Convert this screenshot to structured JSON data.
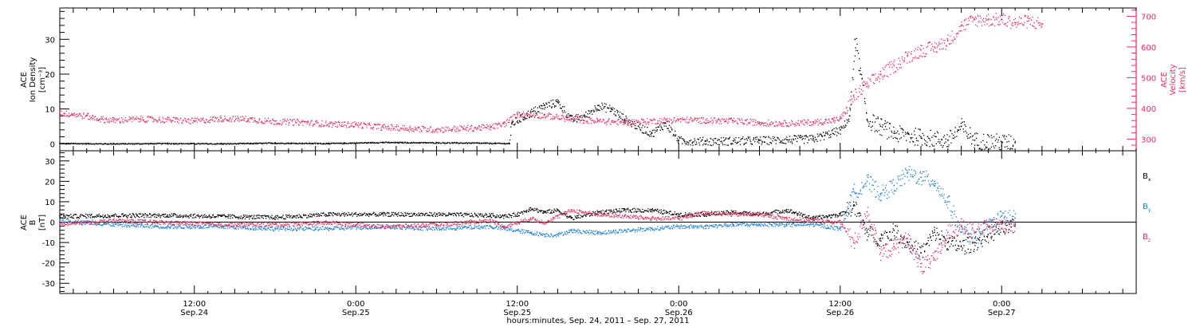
{
  "colors": {
    "black": "#000000",
    "blue": "#1e7fd6",
    "pink": "#e8305f"
  },
  "x_axis": {
    "title": "hours:minutes, Sep. 24, 2011 – Sep. 27, 2011",
    "ticks": [
      {
        "hour": 12,
        "time": "12:00",
        "date": "Sep.24"
      },
      {
        "hour": 24,
        "time": "0:00",
        "date": "Sep.25"
      },
      {
        "hour": 36,
        "time": "12:00",
        "date": "Sep.25"
      },
      {
        "hour": 48,
        "time": "0:00",
        "date": "Sep.26"
      },
      {
        "hour": 60,
        "time": "12:00",
        "date": "Sep.26"
      },
      {
        "hour": 72,
        "time": "0:00",
        "date": "Sep.27"
      }
    ]
  },
  "chart_data": [
    {
      "type": "scatter",
      "panel": "top",
      "x_unit": "hours since Sep. 24, 2011 0:00",
      "xlim": [
        2,
        82
      ],
      "left_axis": {
        "label_line1": "ACE",
        "label_line2": "Ion Density",
        "label_line3": "[cm⁻³]",
        "ylim": [
          -2,
          39
        ],
        "ticks": [
          0,
          10,
          20,
          30
        ],
        "tick_labels": [
          "0",
          "10",
          "20",
          "30"
        ]
      },
      "right_axis": {
        "label_line1": "ACE",
        "label_line2": "Velocity",
        "label_line3": "[km/s]",
        "ylim": [
          262,
          727
        ],
        "ticks": [
          300,
          400,
          500,
          600,
          700
        ],
        "tick_labels": [
          "300",
          "400",
          "500",
          "600",
          "700"
        ]
      },
      "series": [
        {
          "color": "#000000",
          "axis": "left",
          "points": [
            [
              2,
              0.2
            ],
            [
              6,
              0.1
            ],
            [
              10,
              0.2
            ],
            [
              14,
              0.1
            ],
            [
              18,
              0.3
            ],
            [
              22,
              0.2
            ],
            [
              26,
              0.5
            ],
            [
              30,
              0.4
            ],
            [
              33,
              0.3
            ],
            [
              35.4,
              0.2
            ],
            [
              35.6,
              6
            ],
            [
              37,
              9
            ],
            [
              38,
              11
            ],
            [
              39,
              12
            ],
            [
              40,
              7
            ],
            [
              41,
              8
            ],
            [
              42,
              11
            ],
            [
              43,
              10
            ],
            [
              44,
              7
            ],
            [
              45,
              5
            ],
            [
              46,
              3
            ],
            [
              47,
              6
            ],
            [
              48,
              1
            ],
            [
              50,
              0.8
            ],
            [
              54,
              1
            ],
            [
              58,
              1.5
            ],
            [
              60,
              4
            ],
            [
              60.7,
              8
            ],
            [
              61.1,
              30
            ],
            [
              61.5,
              20
            ],
            [
              62,
              7
            ],
            [
              63,
              5
            ],
            [
              64,
              3
            ],
            [
              66,
              2
            ],
            [
              68,
              1
            ],
            [
              69,
              5
            ],
            [
              70,
              1
            ],
            [
              72,
              0.5
            ],
            [
              73,
              0.3
            ]
          ]
        },
        {
          "color": "#e8305f",
          "axis": "right",
          "points": [
            [
              2,
              386
            ],
            [
              3,
              382
            ],
            [
              4,
              376
            ],
            [
              5,
              366
            ],
            [
              6,
              362
            ],
            [
              8,
              366
            ],
            [
              10,
              364
            ],
            [
              12,
              360
            ],
            [
              14,
              368
            ],
            [
              16,
              366
            ],
            [
              18,
              358
            ],
            [
              20,
              356
            ],
            [
              22,
              350
            ],
            [
              24,
              348
            ],
            [
              26,
              340
            ],
            [
              28,
              336
            ],
            [
              30,
              332
            ],
            [
              32,
              336
            ],
            [
              34,
              340
            ],
            [
              35,
              350
            ],
            [
              36,
              382
            ],
            [
              38,
              378
            ],
            [
              40,
              366
            ],
            [
              42,
              360
            ],
            [
              44,
              356
            ],
            [
              46,
              360
            ],
            [
              48,
              364
            ],
            [
              50,
              362
            ],
            [
              52,
              360
            ],
            [
              54,
              355
            ],
            [
              56,
              352
            ],
            [
              58,
              356
            ],
            [
              59.5,
              362
            ],
            [
              60,
              368
            ],
            [
              61,
              440
            ],
            [
              62,
              480
            ],
            [
              63,
              510
            ],
            [
              64,
              540
            ],
            [
              65,
              570
            ],
            [
              66,
              590
            ],
            [
              67,
              600
            ],
            [
              68,
              620
            ],
            [
              69,
              670
            ],
            [
              70,
              690
            ],
            [
              71,
              690
            ],
            [
              72,
              690
            ],
            [
              73,
              680
            ],
            [
              74,
              685
            ],
            [
              75,
              675
            ]
          ]
        }
      ]
    },
    {
      "type": "scatter",
      "panel": "bottom",
      "x_unit": "hours since Sep. 24, 2011 0:00",
      "xlim": [
        2,
        82
      ],
      "y_axis": {
        "label_line1": "ACE",
        "label_line2": "B",
        "label_line3": "[nT]",
        "ylim": [
          -35,
          35
        ],
        "ticks": [
          -30,
          -20,
          -10,
          0,
          10,
          20,
          30
        ],
        "tick_labels": [
          "-30",
          "-20",
          "-10",
          "0",
          "10",
          "20",
          "30"
        ]
      },
      "series": [
        {
          "name": "B",
          "subscript": "x",
          "color": "#000000",
          "points": [
            [
              2,
              3
            ],
            [
              6,
              3.5
            ],
            [
              10,
              3.5
            ],
            [
              14,
              3
            ],
            [
              18,
              2.5
            ],
            [
              22,
              4
            ],
            [
              26,
              4
            ],
            [
              30,
              4
            ],
            [
              34,
              3.5
            ],
            [
              35,
              3
            ],
            [
              36,
              4
            ],
            [
              37,
              7
            ],
            [
              38,
              5
            ],
            [
              39,
              6
            ],
            [
              40,
              2
            ],
            [
              42,
              5
            ],
            [
              44,
              6
            ],
            [
              46,
              6
            ],
            [
              48,
              4
            ],
            [
              50,
              4
            ],
            [
              52,
              5
            ],
            [
              54,
              4
            ],
            [
              56,
              6
            ],
            [
              58,
              2
            ],
            [
              60,
              4
            ],
            [
              61,
              8
            ],
            [
              62,
              -5
            ],
            [
              63,
              -8
            ],
            [
              64,
              -4
            ],
            [
              65,
              -10
            ],
            [
              66,
              -15
            ],
            [
              67,
              -5
            ],
            [
              68,
              -10
            ],
            [
              69,
              -12
            ],
            [
              70,
              -10
            ],
            [
              71,
              -6
            ],
            [
              72,
              -3
            ],
            [
              73,
              -2
            ]
          ]
        },
        {
          "name": "B",
          "subscript": "y",
          "color": "#1e7fd6",
          "points": [
            [
              2,
              1
            ],
            [
              6,
              -1
            ],
            [
              10,
              -2
            ],
            [
              14,
              -2
            ],
            [
              18,
              -3
            ],
            [
              22,
              -3
            ],
            [
              26,
              -2
            ],
            [
              30,
              -3
            ],
            [
              34,
              -2
            ],
            [
              35,
              -3
            ],
            [
              36,
              -4
            ],
            [
              37,
              -5
            ],
            [
              38,
              -6
            ],
            [
              39,
              -6
            ],
            [
              40,
              -4
            ],
            [
              42,
              -5
            ],
            [
              44,
              -4
            ],
            [
              46,
              -3
            ],
            [
              48,
              -2
            ],
            [
              50,
              -2
            ],
            [
              52,
              -1
            ],
            [
              54,
              -1
            ],
            [
              56,
              -1
            ],
            [
              58,
              -1
            ],
            [
              60,
              -3
            ],
            [
              61,
              15
            ],
            [
              62,
              20
            ],
            [
              63,
              14
            ],
            [
              64,
              18
            ],
            [
              65,
              24
            ],
            [
              66,
              22
            ],
            [
              67,
              20
            ],
            [
              68,
              10
            ],
            [
              69,
              -5
            ],
            [
              70,
              -8
            ],
            [
              71,
              -2
            ],
            [
              72,
              3
            ],
            [
              73,
              2
            ]
          ]
        },
        {
          "name": "B",
          "subscript": "z",
          "color": "#e8305f",
          "points": [
            [
              2,
              -1
            ],
            [
              6,
              1
            ],
            [
              10,
              0
            ],
            [
              14,
              -1
            ],
            [
              18,
              -1
            ],
            [
              22,
              0
            ],
            [
              26,
              -2
            ],
            [
              30,
              -1
            ],
            [
              34,
              1
            ],
            [
              35,
              -2
            ],
            [
              36,
              0
            ],
            [
              37,
              2
            ],
            [
              38,
              0
            ],
            [
              39,
              3
            ],
            [
              40,
              6
            ],
            [
              42,
              4
            ],
            [
              44,
              3
            ],
            [
              46,
              2
            ],
            [
              48,
              2
            ],
            [
              50,
              5
            ],
            [
              52,
              4
            ],
            [
              54,
              4
            ],
            [
              56,
              2
            ],
            [
              58,
              1
            ],
            [
              60,
              0
            ],
            [
              61,
              -10
            ],
            [
              62,
              5
            ],
            [
              63,
              -15
            ],
            [
              64,
              -12
            ],
            [
              65,
              -8
            ],
            [
              66,
              -22
            ],
            [
              67,
              -18
            ],
            [
              68,
              -5
            ],
            [
              69,
              -2
            ],
            [
              70,
              -5
            ],
            [
              71,
              -2
            ],
            [
              72,
              -1
            ],
            [
              73,
              -1
            ]
          ]
        }
      ]
    }
  ]
}
